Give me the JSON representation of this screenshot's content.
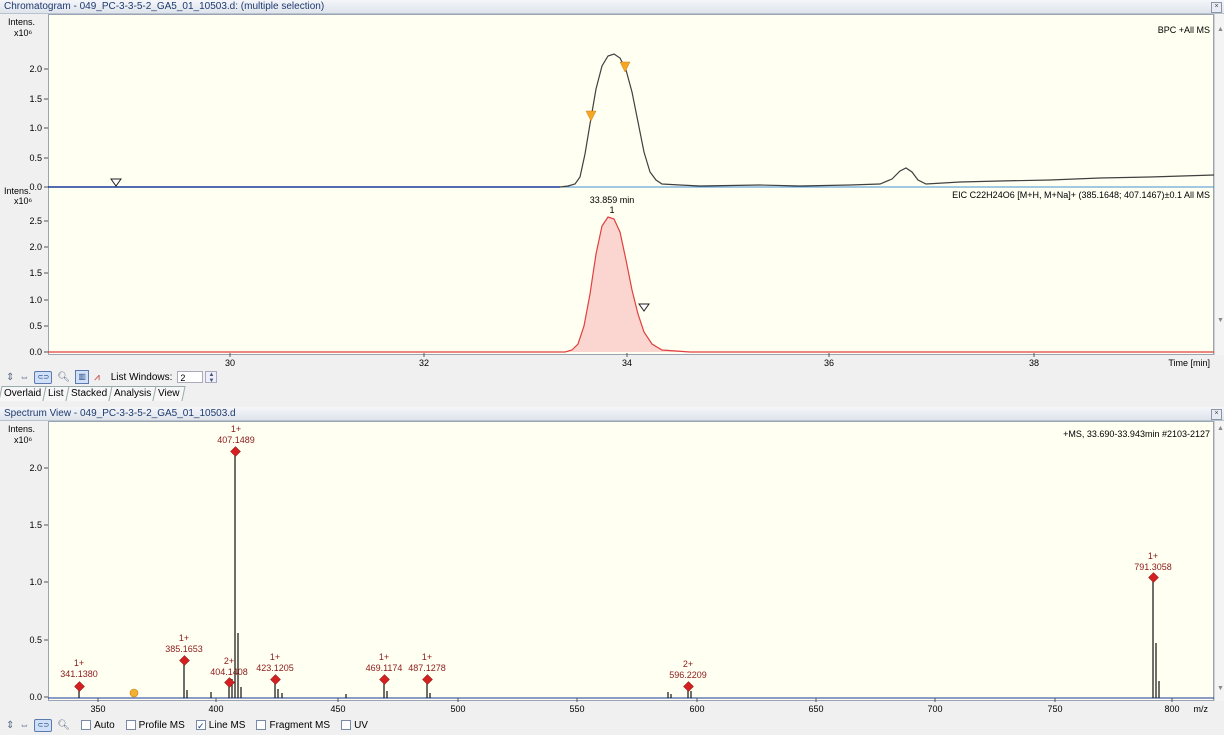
{
  "chromatogram": {
    "title": "Chromatogram - 049_PC-3-3-5-2_GA5_01_10503.d: (multiple selection)",
    "trace1": {
      "y_label": "Intens.",
      "y_scale": "x10⁶",
      "label": "BPC +All MS",
      "yticks": [
        "0.0",
        "0.5",
        "1.0",
        "1.5",
        "2.0"
      ]
    },
    "trace2": {
      "y_label": "Intens.",
      "y_scale": "x10⁶",
      "label": "EIC C22H24O6 [M+H, M+Na]+ (385.1648; 407.1467)±0.1 All MS",
      "peak_time": "33.859 min",
      "peak_number": "1",
      "yticks": [
        "0.0",
        "0.5",
        "1.0",
        "1.5",
        "2.0",
        "2.5"
      ]
    },
    "xticks": [
      "30",
      "32",
      "34",
      "36",
      "38"
    ],
    "x_unit": "Time [min]",
    "toolbar": {
      "list_windows_label": "List Windows:",
      "list_windows_value": "2"
    },
    "tabs": [
      "Overlaid",
      "List",
      "Stacked",
      "Analysis",
      "View"
    ]
  },
  "spectrum": {
    "title": "Spectrum View - 049_PC-3-3-5-2_GA5_01_10503.d",
    "y_label": "Intens.",
    "y_scale": "x10⁶",
    "label": "+MS, 33.690-33.943min #2103-2127",
    "yticks": [
      "0.0",
      "0.5",
      "1.0",
      "1.5",
      "2.0"
    ],
    "xticks": [
      "350",
      "400",
      "450",
      "500",
      "550",
      "600",
      "650",
      "700",
      "750",
      "800"
    ],
    "x_unit": "m/z",
    "peaks": [
      {
        "charge": "1+",
        "mz": "341.1380"
      },
      {
        "charge": "1+",
        "mz": "385.1653"
      },
      {
        "charge": "2+",
        "mz": "404.1408"
      },
      {
        "charge": "1+",
        "mz": "407.1489"
      },
      {
        "charge": "1+",
        "mz": "423.1205"
      },
      {
        "charge": "1+",
        "mz": "469.1174"
      },
      {
        "charge": "1+",
        "mz": "487.1278"
      },
      {
        "charge": "2+",
        "mz": "596.2209"
      },
      {
        "charge": "1+",
        "mz": "791.3058"
      }
    ],
    "checkboxes": [
      {
        "label": "Auto",
        "checked": false
      },
      {
        "label": "Profile MS",
        "checked": false
      },
      {
        "label": "Line MS",
        "checked": true
      },
      {
        "label": "Fragment MS",
        "checked": false
      },
      {
        "label": "UV",
        "checked": false
      }
    ]
  },
  "colors": {
    "bpc_trace": "#404040",
    "eic_trace": "#e04040",
    "eic_fill": "#fbd6d0",
    "peak_label": "#8b1a1a",
    "marker": "#d42020",
    "baseline": "#1a3a9a"
  }
}
